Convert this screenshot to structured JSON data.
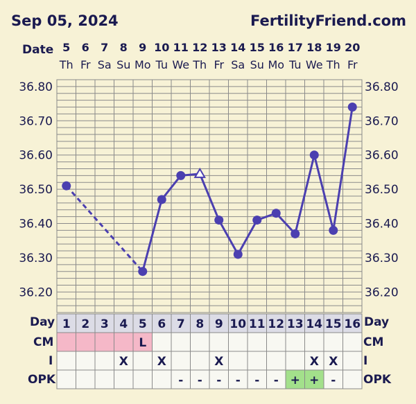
{
  "header": {
    "date": "Sep 05, 2024",
    "site": "FertilityFriend.com"
  },
  "labels": {
    "date_row": "Date",
    "day_row": "Day",
    "cm_row": "CM",
    "i_row": "I",
    "opk_row": "OPK"
  },
  "colors": {
    "background": "#f7f2d6",
    "grid": "#8a8a8a",
    "line": "#4b3fb0",
    "cm_pink": "#f5b8c8",
    "opk_green": "#a3e08b",
    "row_fill": "#f8f8f2",
    "day_header_fill": "#dcdce6",
    "text": "#1a1a50"
  },
  "chart_data": {
    "type": "line",
    "dates": [
      "5",
      "6",
      "7",
      "8",
      "9",
      "10",
      "11",
      "12",
      "13",
      "14",
      "15",
      "16",
      "17",
      "18",
      "19",
      "20"
    ],
    "weekdays": [
      "Th",
      "Fr",
      "Sa",
      "Su",
      "Mo",
      "Tu",
      "We",
      "Th",
      "Fr",
      "Sa",
      "Su",
      "Mo",
      "Tu",
      "We",
      "Th",
      "Fr"
    ],
    "cycle_days": [
      "1",
      "2",
      "3",
      "4",
      "5",
      "6",
      "7",
      "8",
      "9",
      "10",
      "11",
      "12",
      "13",
      "14",
      "15",
      "16"
    ],
    "y_ticks": [
      "36.80",
      "36.70",
      "36.60",
      "36.50",
      "36.40",
      "36.30",
      "36.20"
    ],
    "ylim": [
      36.14,
      36.82
    ],
    "series": [
      {
        "values": [
          36.51,
          null,
          null,
          null,
          36.26,
          36.47,
          36.54,
          36.545,
          36.41,
          36.31,
          36.41,
          36.43,
          36.37,
          36.6,
          36.38,
          36.74
        ],
        "dashed_segments": [
          [
            0,
            4
          ]
        ],
        "open_markers": [
          7
        ]
      }
    ],
    "cm": [
      "",
      "",
      "",
      "",
      "L",
      "",
      "",
      "",
      "",
      "",
      "",
      "",
      "",
      "",
      "",
      ""
    ],
    "cm_highlight": [
      true,
      true,
      true,
      true,
      true,
      false,
      false,
      false,
      false,
      false,
      false,
      false,
      false,
      false,
      false,
      false
    ],
    "intercourse": [
      "",
      "",
      "",
      "X",
      "",
      "X",
      "",
      "",
      "X",
      "",
      "",
      "",
      "",
      "X",
      "X",
      ""
    ],
    "opk": [
      "",
      "",
      "",
      "",
      "",
      "",
      "-",
      "-",
      "-",
      "-",
      "-",
      "-",
      "+",
      "+",
      "-",
      ""
    ],
    "grid": true
  }
}
